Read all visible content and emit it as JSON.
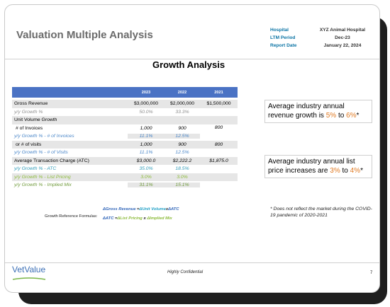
{
  "slide": {
    "title": "Valuation Multiple Analysis",
    "subtitle": "Growth Analysis",
    "meta": [
      {
        "key": "Hospital",
        "value": "XYZ Animal Hospital"
      },
      {
        "key": "LTM Period",
        "value": "Dec-23"
      },
      {
        "key": "Report Date",
        "value": "January 22, 2024"
      }
    ]
  },
  "table": {
    "headers": [
      "",
      "2023",
      "2022",
      "2021"
    ],
    "rows": [
      {
        "label": "Gross Revenue",
        "v2023": "$3,000,000",
        "v2022": "$2,000,000",
        "v2021": "$1,500,000"
      },
      {
        "label": "y/y Growth %",
        "v2023": "50.0%",
        "v2022": "33.3%",
        "v2021": ""
      },
      {
        "label": "Unit Volume Growth",
        "v2023": "",
        "v2022": "",
        "v2021": ""
      },
      {
        "label": "# of Invoices",
        "v2023": "1,000",
        "v2022": "900",
        "v2021": "800"
      },
      {
        "label": "y/y Growth % - # of Invoices",
        "v2023": "11.1%",
        "v2022": "12.5%",
        "v2021": ""
      },
      {
        "label": "or # of visits",
        "v2023": "1,000",
        "v2022": "900",
        "v2021": "800"
      },
      {
        "label": "y/y Growth % - # of Visits",
        "v2023": "11.1%",
        "v2022": "12.5%",
        "v2021": ""
      },
      {
        "label": "Average Transaction Charge (ATC)",
        "v2023": "$3,000.0",
        "v2022": "$2,222.2",
        "v2021": "$1,875.0"
      },
      {
        "label": "y/y Growth % - ATC",
        "v2023": "35.0%",
        "v2022": "18.5%",
        "v2021": ""
      },
      {
        "label": "y/y Growth % - List Pricing",
        "v2023": "3.0%",
        "v2022": "3.0%",
        "v2021": ""
      },
      {
        "label": "y/y Growth % - Implied Mix",
        "v2023": "31.1%",
        "v2022": "15.1%",
        "v2021": ""
      }
    ]
  },
  "callouts": {
    "revenue": {
      "prefix": "Average industry annual revenue growth is ",
      "low": "5%",
      "mid": " to ",
      "high": "6%",
      "suffix": "*"
    },
    "pricing": {
      "prefix": "Average industry annual list price increases are ",
      "low": "3%",
      "mid": " to ",
      "high": "4%",
      "suffix": "*"
    }
  },
  "note": "* Does not reflect the market during the COVID-19 pandemic of 2020-2021",
  "formulas": {
    "label": "Growth Reference Formulas:",
    "line1": {
      "a": "ΔGross  Revenue",
      "eq": " =",
      "b": "ΔUnit  Volume",
      "x": "x",
      "c": "ΔATC"
    },
    "line2": {
      "a": "ΔATC",
      "eq": " =",
      "b": "ΔList Pricing",
      "x": " x ",
      "c": "ΔImplied Mix"
    }
  },
  "footer": {
    "logo": "VetValue",
    "center": "Highly Confidential",
    "page": "7"
  },
  "colors": {
    "accent": "#e07b24",
    "header_blue": "#4a72c4",
    "meta_blue": "#0b74a5"
  }
}
